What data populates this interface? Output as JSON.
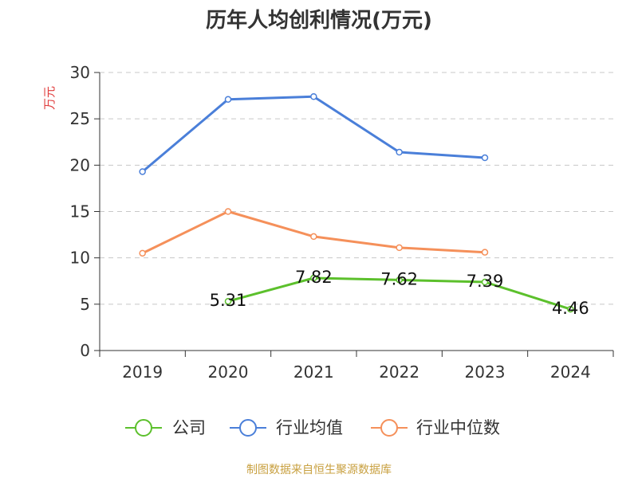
{
  "chart_data": {
    "type": "line",
    "title": "历年人均创利情况(万元)",
    "ylabel": "万元",
    "xlabel": "",
    "categories": [
      "2019",
      "2020",
      "2021",
      "2022",
      "2023",
      "2024"
    ],
    "ylim": [
      0,
      30
    ],
    "yticks": [
      0,
      5,
      10,
      15,
      20,
      25,
      30
    ],
    "grid": true,
    "legend_position": "bottom",
    "series": [
      {
        "name": "公司",
        "color": "#5cc02c",
        "values": [
          null,
          5.31,
          7.82,
          7.62,
          7.39,
          4.46
        ],
        "labels": [
          null,
          "5.31",
          "7.82",
          "7.62",
          "7.39",
          "4.46"
        ]
      },
      {
        "name": "行业均值",
        "color": "#4a7fd9",
        "values": [
          19.3,
          27.1,
          27.4,
          21.4,
          20.8,
          null
        ]
      },
      {
        "name": "行业中位数",
        "color": "#f5905a",
        "values": [
          10.5,
          15.0,
          12.3,
          11.1,
          10.6,
          null
        ]
      }
    ]
  },
  "source": "制图数据来自恒生聚源数据库"
}
